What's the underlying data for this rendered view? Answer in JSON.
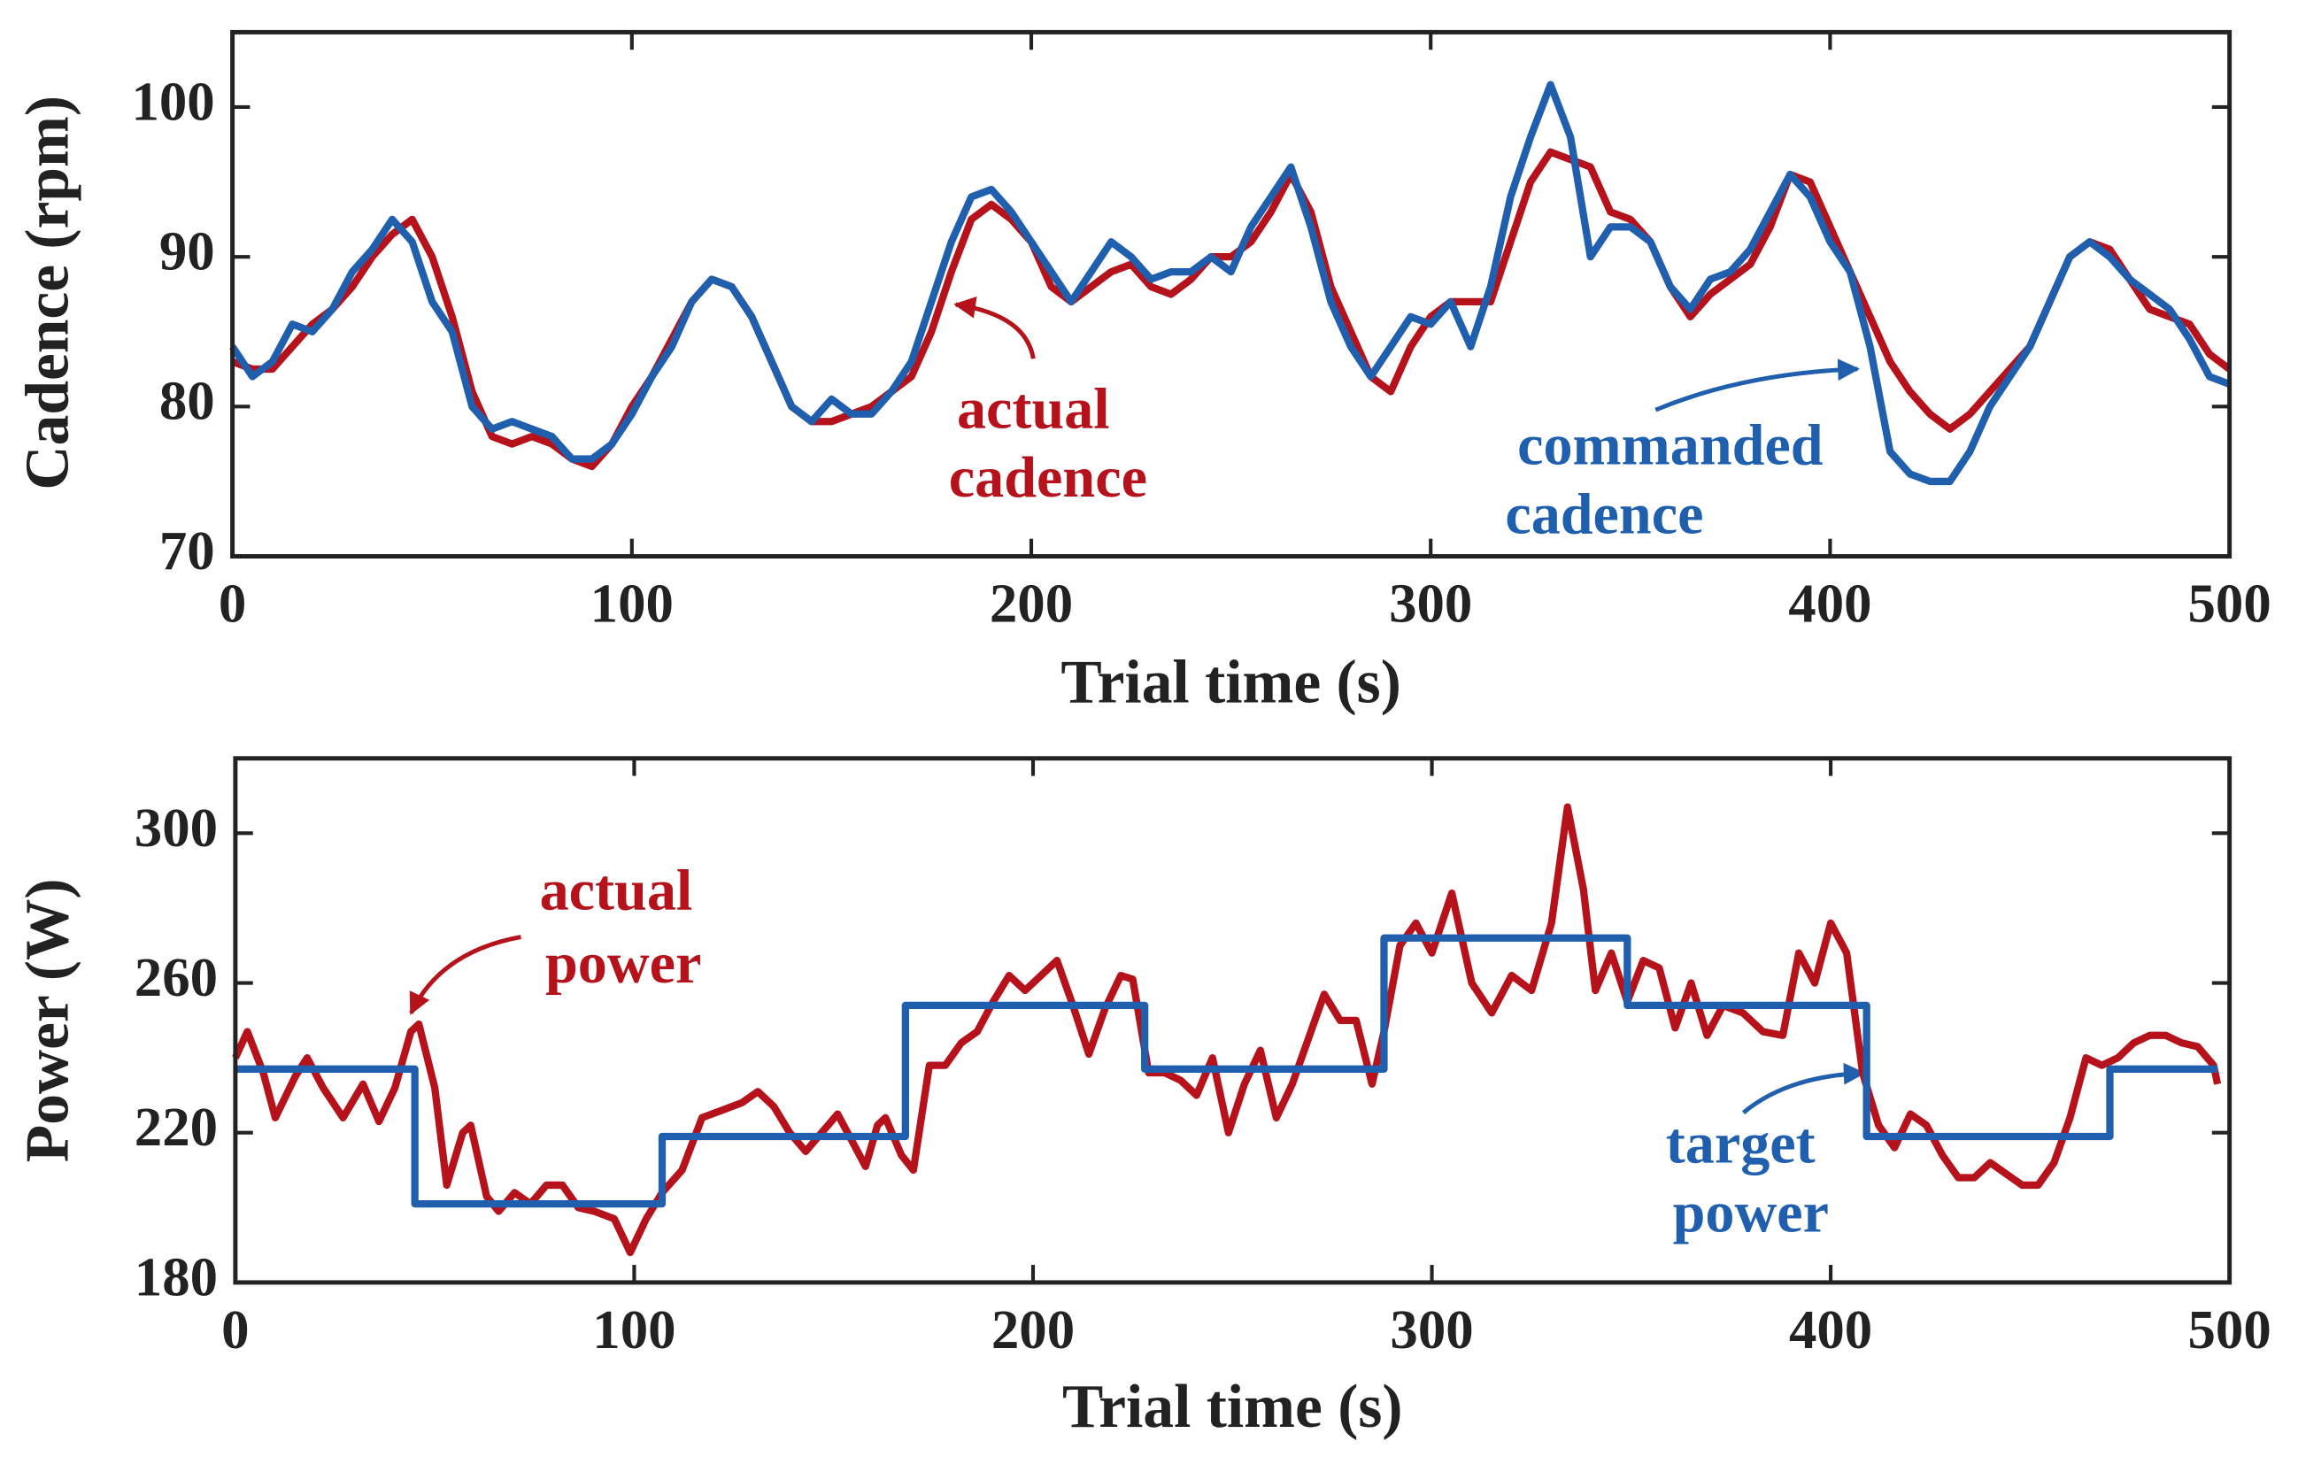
{
  "chart_data": [
    {
      "type": "line",
      "xlabel": "Trial time (s)",
      "ylabel": "Cadence (rpm)",
      "xlim": [
        0,
        500
      ],
      "xticks": [
        0,
        100,
        200,
        300,
        400,
        500
      ],
      "ylim": [
        70,
        105
      ],
      "yticks": [
        70,
        80,
        90,
        100
      ],
      "x": [
        0,
        5,
        10,
        15,
        20,
        25,
        30,
        35,
        40,
        45,
        50,
        55,
        60,
        65,
        70,
        75,
        80,
        85,
        90,
        95,
        100,
        105,
        110,
        115,
        120,
        125,
        130,
        135,
        140,
        145,
        150,
        155,
        160,
        165,
        170,
        175,
        180,
        185,
        190,
        195,
        200,
        205,
        210,
        215,
        220,
        225,
        230,
        235,
        240,
        245,
        250,
        255,
        260,
        265,
        270,
        275,
        280,
        285,
        290,
        295,
        300,
        305,
        310,
        315,
        320,
        325,
        330,
        335,
        340,
        345,
        350,
        355,
        360,
        365,
        370,
        375,
        380,
        385,
        390,
        395,
        400,
        405,
        410,
        415,
        420,
        425,
        430,
        435,
        440,
        445,
        450,
        455,
        460,
        465,
        470,
        475,
        480,
        485,
        490,
        495,
        500
      ],
      "series": [
        {
          "name": "actual cadence",
          "color": "#b5121b",
          "values": [
            83,
            82.5,
            82.5,
            84,
            85.5,
            86.5,
            88,
            90,
            91.5,
            92.5,
            90,
            86,
            81,
            78,
            77.5,
            78,
            77.5,
            76.5,
            76,
            77.5,
            80,
            82,
            84.5,
            87,
            88.5,
            88,
            86,
            83,
            80,
            79,
            79,
            79.5,
            80,
            81,
            82,
            85,
            89,
            92.5,
            93.5,
            92.5,
            91,
            88,
            87,
            88,
            89,
            89.5,
            88,
            87.5,
            88.5,
            90,
            90,
            91,
            93,
            95.5,
            93,
            88,
            85,
            82,
            81,
            84,
            86,
            87,
            87,
            87,
            91,
            95,
            97,
            96.5,
            96,
            93,
            92.5,
            91,
            88,
            86,
            87.5,
            88.5,
            89.5,
            92,
            95.5,
            95,
            92,
            89,
            86,
            83,
            81,
            79.5,
            78.5,
            79.5,
            81,
            82.5,
            84,
            87,
            90,
            91,
            90.5,
            88.5,
            86.5,
            86,
            85.5,
            83.5,
            82.5
          ]
        },
        {
          "name": "commanded cadence",
          "color": "#1f5fad",
          "values": [
            84,
            82,
            83,
            85.5,
            85,
            86.5,
            89,
            90.5,
            92.5,
            91,
            87,
            85,
            80,
            78.5,
            79,
            78.5,
            78,
            76.5,
            76.5,
            77.5,
            79.5,
            82,
            84,
            87,
            88.5,
            88,
            86,
            83,
            80,
            79,
            80.5,
            79.5,
            79.5,
            81,
            83,
            87,
            91,
            94,
            94.5,
            93,
            91,
            89,
            87,
            89,
            91,
            90,
            88.5,
            89,
            89,
            90,
            89,
            92,
            94,
            96,
            92,
            87,
            84,
            82,
            84,
            86,
            85.5,
            87,
            84,
            88,
            94,
            98,
            101.5,
            98,
            90,
            92,
            92,
            91,
            88,
            86.5,
            88.5,
            89,
            90.5,
            93,
            95.5,
            94,
            91,
            89,
            84,
            77,
            75.5,
            75,
            75,
            77,
            80,
            82,
            84,
            87,
            90,
            91,
            90,
            88.5,
            87.5,
            86.5,
            84.5,
            82,
            81.5
          ]
        }
      ],
      "annotations": [
        {
          "text": [
            "actual",
            "cadence"
          ],
          "color": "#b5121b"
        },
        {
          "text": [
            "commanded",
            "cadence"
          ],
          "color": "#1f5fad"
        }
      ]
    },
    {
      "type": "line",
      "xlabel": "Trial time (s)",
      "ylabel": "Power (W)",
      "xlim": [
        0,
        500
      ],
      "xticks": [
        0,
        100,
        200,
        300,
        400,
        500
      ],
      "ylim": [
        180,
        320
      ],
      "yticks": [
        180,
        220,
        260,
        300
      ],
      "series": [
        {
          "name": "actual power",
          "color": "#b5121b",
          "x": [
            0,
            3,
            7,
            10,
            15,
            18,
            22,
            27,
            32,
            36,
            40,
            44,
            46,
            50,
            53,
            57,
            59,
            63,
            66,
            70,
            74,
            78,
            82,
            86,
            90,
            95,
            99,
            103,
            107,
            112,
            117,
            122,
            127,
            131,
            135,
            139,
            143,
            147,
            151,
            154,
            158,
            161,
            163,
            167,
            170,
            174,
            178,
            182,
            186,
            190,
            194,
            198,
            202,
            206,
            210,
            214,
            218,
            222,
            225,
            229,
            233,
            237,
            241,
            245,
            249,
            253,
            257,
            261,
            265,
            269,
            273,
            277,
            281,
            285,
            288,
            292,
            296,
            300,
            305,
            310,
            315,
            320,
            325,
            330,
            334,
            338,
            341,
            345,
            349,
            353,
            357,
            361,
            365,
            369,
            373,
            378,
            383,
            388,
            392,
            396,
            400,
            404,
            408,
            412,
            416,
            420,
            424,
            428,
            432,
            436,
            440,
            444,
            448,
            452,
            456,
            460,
            464,
            468,
            472,
            476,
            480,
            484,
            488,
            492,
            496,
            497
          ],
          "values": [
            240,
            247,
            236,
            224,
            235,
            240,
            232,
            224,
            233,
            223,
            232,
            247,
            249,
            232,
            206,
            220,
            222,
            203,
            199,
            204,
            201,
            206,
            206,
            200,
            199,
            197,
            188,
            197,
            204,
            210,
            224,
            226,
            228,
            231,
            227,
            220,
            215,
            220,
            225,
            219,
            211,
            222,
            224,
            214,
            210,
            238,
            238,
            244,
            247,
            255,
            262,
            258,
            262,
            266,
            254,
            241,
            253,
            262,
            261,
            236,
            236,
            234,
            230,
            240,
            220,
            233,
            242,
            224,
            233,
            245,
            257,
            250,
            250,
            233,
            247,
            270,
            276,
            268,
            284,
            260,
            252,
            262,
            258,
            276,
            307,
            285,
            258,
            268,
            255,
            266,
            264,
            248,
            260,
            246,
            254,
            252,
            247,
            246,
            268,
            260,
            276,
            268,
            236,
            222,
            216,
            225,
            222,
            214,
            208,
            208,
            212,
            209,
            206,
            206,
            212,
            224,
            240,
            238,
            240,
            244,
            246,
            246,
            244,
            243,
            238,
            233
          ]
        },
        {
          "name": "target power",
          "color": "#1f5fad",
          "x": [
            0,
            45,
            45,
            107,
            107,
            168,
            168,
            228,
            228,
            288,
            288,
            349,
            349,
            409,
            409,
            470,
            470,
            497
          ],
          "values": [
            237,
            237,
            201,
            201,
            219,
            219,
            254,
            254,
            237,
            237,
            272,
            272,
            254,
            254,
            219,
            219,
            237,
            237
          ]
        }
      ],
      "annotations": [
        {
          "text": [
            "actual",
            "power"
          ],
          "color": "#b5121b"
        },
        {
          "text": [
            "target",
            "power"
          ],
          "color": "#1f5fad"
        }
      ]
    }
  ]
}
